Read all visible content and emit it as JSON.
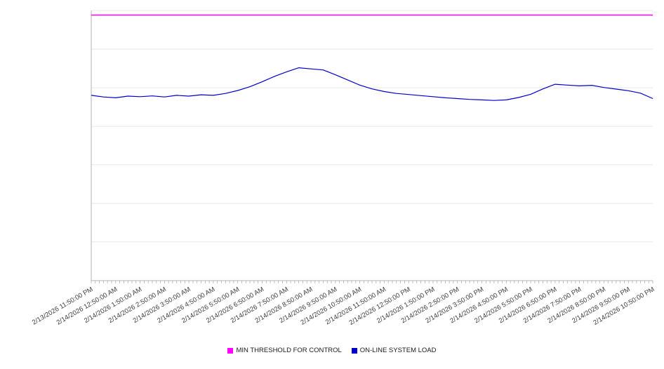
{
  "legend": {
    "items": [
      {
        "label": "MIN THRESHOLD FOR CONTROL",
        "color": "#ff00ff"
      },
      {
        "label": "ON-LINE SYSTEM LOAD",
        "color": "#0000cd"
      }
    ]
  },
  "chart_data": {
    "type": "line",
    "title": "",
    "xlabel": "",
    "ylabel": "",
    "ylim": [
      0,
      100
    ],
    "y_axis_labels_visible": false,
    "grid": true,
    "legend_position": "bottom",
    "gridline_values": [
      100,
      85.7,
      71.4,
      57.1,
      42.9,
      28.6,
      14.3,
      0
    ],
    "minor_ticks_per_label_interval": 6,
    "categories": [
      "2/13/2026 11:50:00 PM",
      "2/14/2026 12:50:00 AM",
      "2/14/2026 1:50:00 AM",
      "2/14/2026 2:50:00 AM",
      "2/14/2026 3:50:00 AM",
      "2/14/2026 4:50:00 AM",
      "2/14/2026 5:50:00 AM",
      "2/14/2026 6:50:00 AM",
      "2/14/2026 7:50:00 AM",
      "2/14/2026 8:50:00 AM",
      "2/14/2026 9:50:00 AM",
      "2/14/2026 10:50:00 AM",
      "2/14/2026 11:50:00 AM",
      "2/14/2026 12:50:00 PM",
      "2/14/2026 1:50:00 PM",
      "2/14/2026 2:50:00 PM",
      "2/14/2026 3:50:00 PM",
      "2/14/2026 4:50:00 PM",
      "2/14/2026 5:50:00 PM",
      "2/14/2026 6:50:00 PM",
      "2/14/2026 7:50:00 PM",
      "2/14/2026 8:50:00 PM",
      "2/14/2026 9:50:00 PM",
      "2/14/2026 10:50:00 PM"
    ],
    "series": [
      {
        "name": "MIN THRESHOLD FOR CONTROL",
        "style": "threshold",
        "color": "#ff00ff",
        "value": 98.3
      },
      {
        "name": "ON-LINE SYSTEM LOAD",
        "style": "line",
        "color": "#0000cd",
        "x_step_hours": 0.5,
        "values": [
          68.6,
          68.0,
          67.7,
          68.3,
          68.1,
          68.4,
          68.0,
          68.6,
          68.3,
          68.8,
          68.6,
          69.3,
          70.4,
          71.8,
          73.6,
          75.6,
          77.3,
          78.8,
          78.4,
          78.0,
          76.2,
          74.3,
          72.4,
          71.0,
          70.0,
          69.3,
          68.9,
          68.5,
          68.1,
          67.7,
          67.4,
          67.1,
          66.9,
          66.7,
          66.9,
          67.8,
          69.0,
          71.0,
          72.7,
          72.4,
          72.1,
          72.3,
          71.5,
          70.9,
          70.3,
          69.4,
          67.4
        ]
      }
    ],
    "colors": {
      "grid": "#e8e8e8",
      "axis": "#b3b3b3",
      "tick": "#a6a6a6",
      "label_text": "#404040"
    }
  }
}
